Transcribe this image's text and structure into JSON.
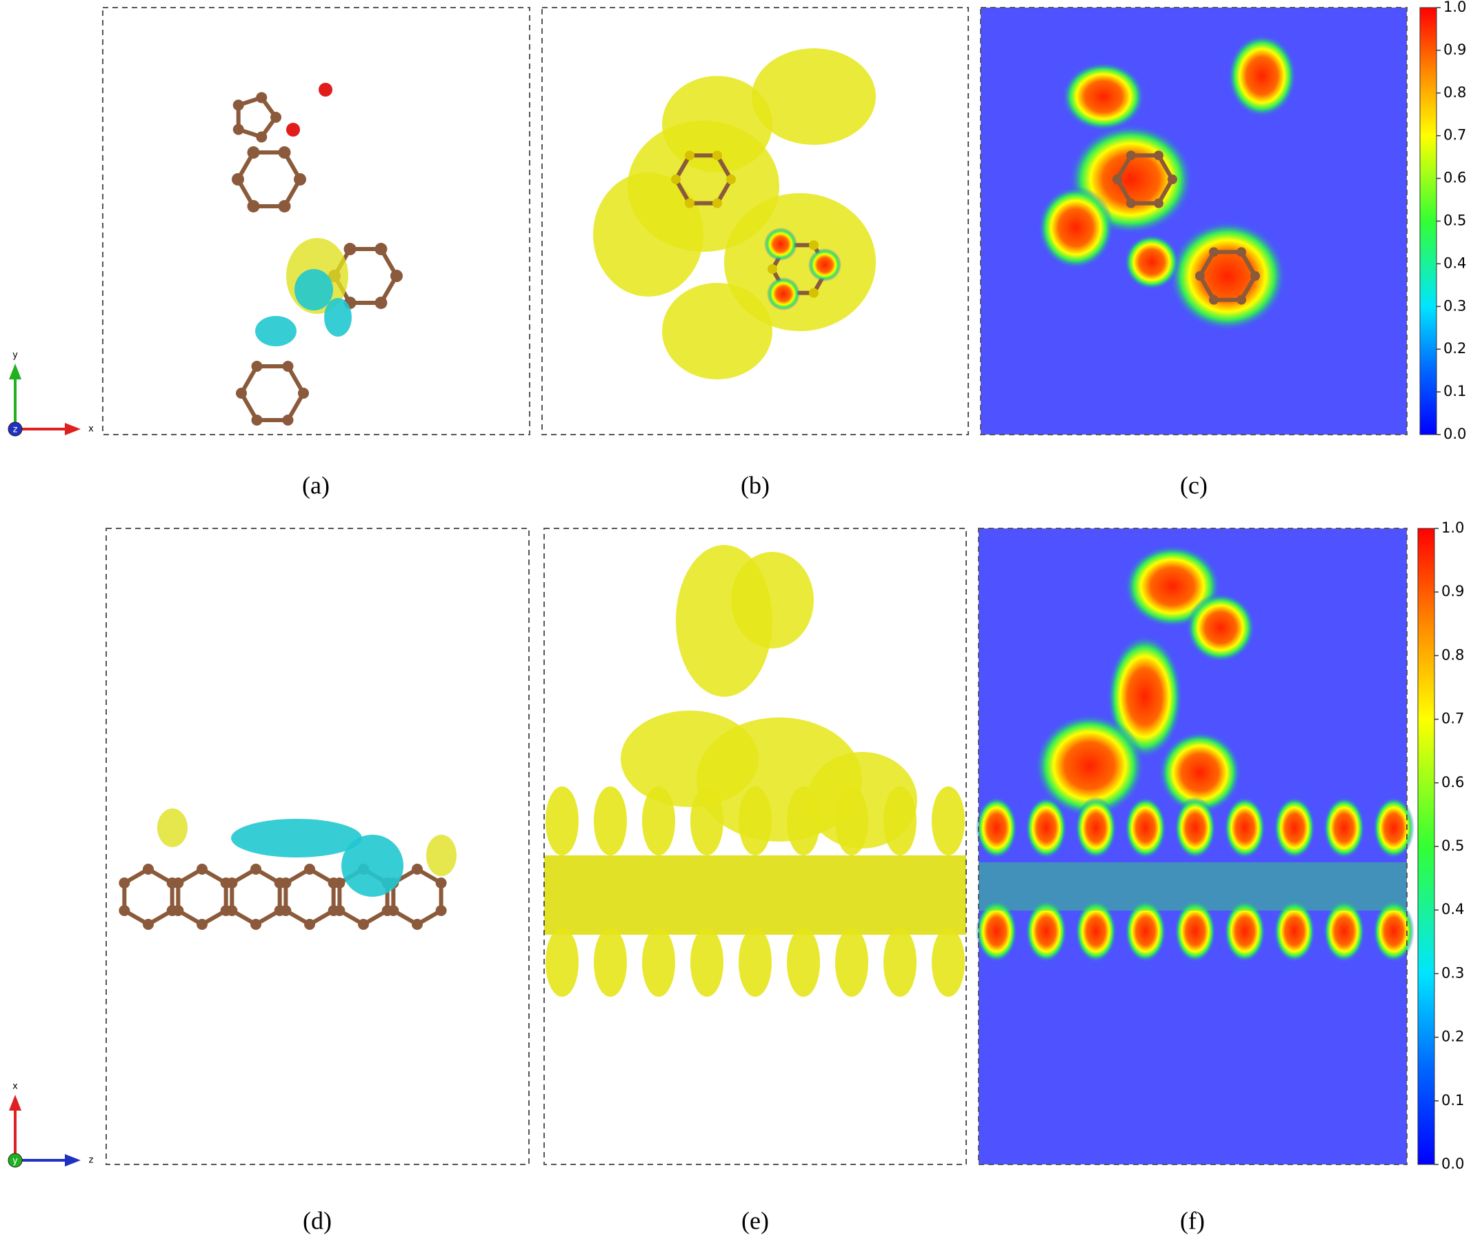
{
  "panels": [
    {
      "label": "(a)"
    },
    {
      "label": "(b)"
    },
    {
      "label": "(c)"
    },
    {
      "label": "(d)"
    },
    {
      "label": "(e)"
    },
    {
      "label": "(f)"
    }
  ],
  "colorbars": [
    {
      "ylim": [
        0,
        1
      ],
      "yticks": [
        {
          "value": 0,
          "label": "0.0"
        },
        0.1,
        0.2,
        0.3,
        0.4,
        0.5,
        0.6,
        0.7,
        0.8,
        0.9,
        {
          "value": 1,
          "label": "1.0"
        }
      ]
    },
    {
      "ylim": [
        0,
        1
      ],
      "yticks": [
        {
          "value": 0,
          "label": "0.0"
        },
        0.1,
        0.2,
        0.3,
        0.4,
        0.5,
        0.6,
        0.7,
        0.8,
        0.9,
        {
          "value": 1,
          "label": "1.0"
        }
      ]
    }
  ],
  "axes": [
    {
      "up": "y",
      "right": "x",
      "out": "z"
    },
    {
      "up": "x",
      "right": "z",
      "out": "y"
    }
  ]
}
